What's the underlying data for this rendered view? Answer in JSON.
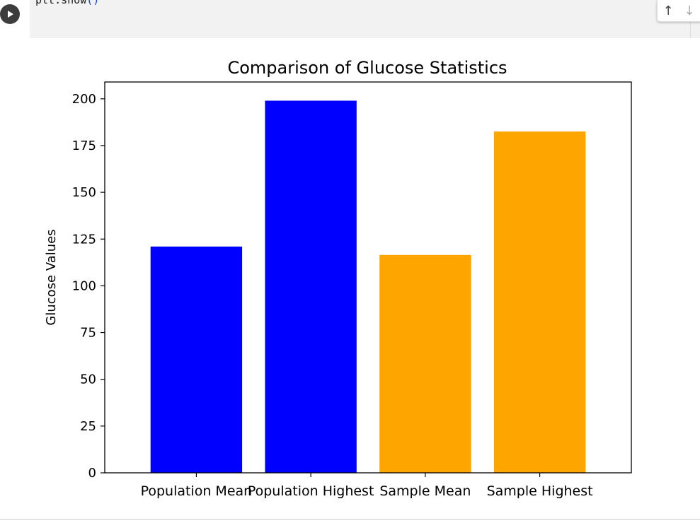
{
  "code_cell": {
    "code_text": "plt.show",
    "code_parens": "()",
    "run_icon": "play-icon"
  },
  "cell_toolbar": {
    "move_up_icon": "arrow-up-icon",
    "move_up_glyph": "↑",
    "move_down_icon": "arrow-down-icon",
    "move_down_glyph": "↓"
  },
  "chart_data": {
    "type": "bar",
    "title": "Comparison of Glucose Statistics",
    "xlabel": "",
    "ylabel": "Glucose Values",
    "categories": [
      "Population Mean",
      "Population Highest",
      "Sample Mean",
      "Sample Highest"
    ],
    "values": [
      121,
      199,
      116.5,
      182.5
    ],
    "colors": [
      "#0000ff",
      "#0000ff",
      "#ffa500",
      "#ffa500"
    ],
    "ylim": [
      0,
      209
    ],
    "yticks": [
      0,
      25,
      50,
      75,
      100,
      125,
      150,
      175,
      200
    ],
    "ytick_labels": [
      "0",
      "25",
      "50",
      "75",
      "100",
      "125",
      "150",
      "175",
      "200"
    ],
    "grid": false,
    "legend": "none"
  }
}
